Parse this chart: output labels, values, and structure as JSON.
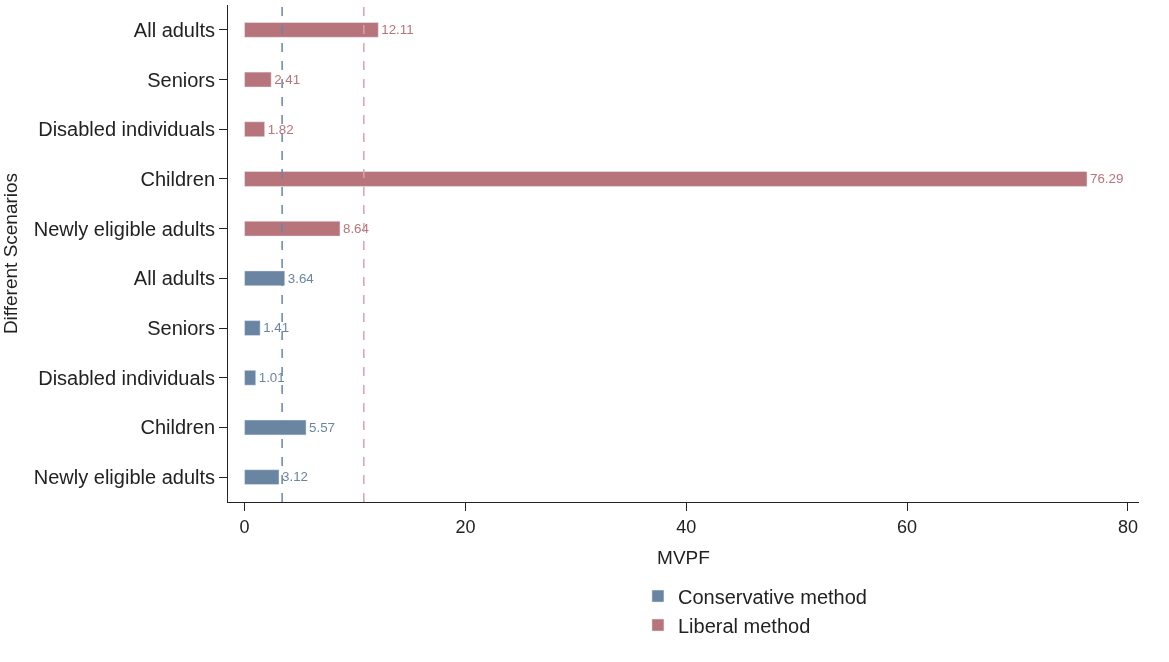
{
  "chart_data": {
    "type": "bar",
    "orientation": "horizontal",
    "ylabel": "Different Scenarios",
    "xlabel": "MVPF",
    "categories": [
      "All adults",
      "Seniors",
      "Disabled individuals",
      "Children",
      "Newly eligible adults",
      "All adults",
      "Seniors",
      "Disabled individuals",
      "Children",
      "Newly eligible adults"
    ],
    "series": [
      {
        "name": "Conservative method",
        "color": "#6a85a2",
        "values": [
          null,
          null,
          null,
          null,
          null,
          3.64,
          1.41,
          1.01,
          5.57,
          3.12
        ]
      },
      {
        "name": "Liberal method",
        "color": "#b7747a",
        "values": [
          12.11,
          2.41,
          1.82,
          76.29,
          8.64,
          null,
          null,
          null,
          null,
          null
        ]
      }
    ],
    "xlim": [
      -1.5,
      81
    ],
    "xticks": [
      0,
      20,
      40,
      60,
      80
    ],
    "ref_lines": [
      {
        "axis": "x",
        "value": 3.4,
        "color": "#6a85a2",
        "line_style": "dashed"
      },
      {
        "axis": "x",
        "value": 10.8,
        "color": "#d9a3a8",
        "line_style": "dashed"
      }
    ],
    "data_labels": true,
    "legend": "bottom"
  }
}
